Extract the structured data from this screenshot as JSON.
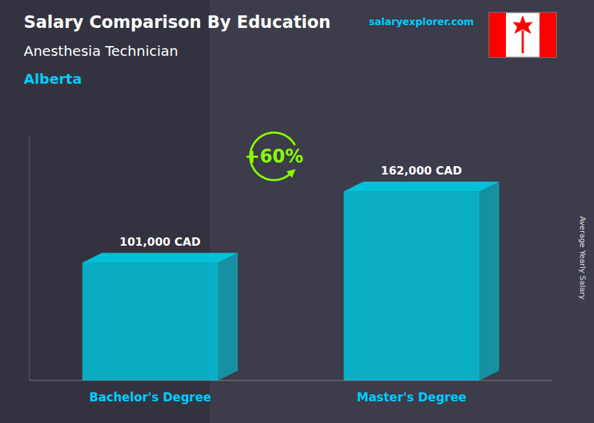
{
  "chart_data": {
    "type": "bar",
    "title": "Salary Comparison By Education",
    "subtitle": "Anesthesia Technician",
    "annotations": [
      "Alberta",
      "+60%",
      "salaryexplorer.com"
    ],
    "ylabel": "Average Yearly Salary",
    "categories": [
      "Bachelor's Degree",
      "Master's Degree"
    ],
    "values": [
      101000,
      162000
    ],
    "value_labels": [
      "101,000 CAD",
      "162,000 CAD"
    ],
    "data_labels": true,
    "color": "#00c8e0",
    "ylim": [
      0,
      210000
    ],
    "tick_labels": false,
    "grid": false
  }
}
